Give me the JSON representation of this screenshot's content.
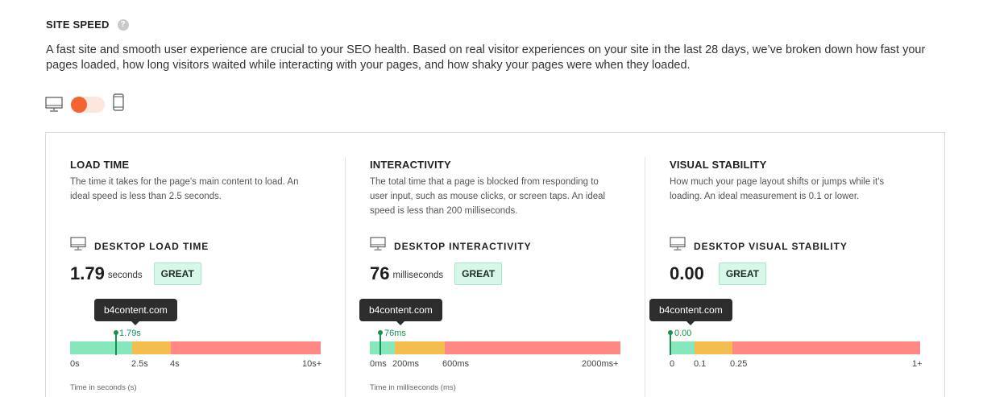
{
  "section": {
    "title": "SITE SPEED",
    "help_icon": "?",
    "description": "A fast site and smooth user experience are crucial to your SEO health. Based on real visitor experiences on your site in the last 28 days, we’ve broken down how fast your pages loaded, how long visitors waited while interacting with your pages, and how shaky your pages were when they loaded."
  },
  "device_toggle": {
    "selected": "desktop",
    "left_icon": "desktop-monitor-icon",
    "right_icon": "mobile-phone-icon",
    "accent_color": "#f26533"
  },
  "colors": {
    "good": "#86e6bc",
    "needs_improvement": "#f3bd4f",
    "poor": "#ff8885",
    "marker": "#16924f",
    "badge_bg": "#d7f7e9"
  },
  "metrics": {
    "load": {
      "title": "LOAD TIME",
      "description": "The time it takes for the page's main content to load. An ideal speed is less than 2.5 seconds.",
      "subtitle": "DESKTOP LOAD TIME",
      "value": "1.79",
      "unit": "seconds",
      "badge": "GREAT",
      "tooltip": "b4content.com",
      "marker_label": "1.79s",
      "ticks": [
        "0s",
        "2.5s",
        "4s",
        "10s+"
      ],
      "axis_note": "Time in seconds (s)"
    },
    "interactivity": {
      "title": "INTERACTIVITY",
      "description": "The total time that a page is blocked from responding to user input, such as mouse clicks, or screen taps. An ideal speed is less than 200 milliseconds.",
      "subtitle": "DESKTOP INTERACTIVITY",
      "value": "76",
      "unit": "milliseconds",
      "badge": "GREAT",
      "tooltip": "b4content.com",
      "marker_label": "76ms",
      "ticks": [
        "0ms",
        "200ms",
        "600ms",
        "2000ms+"
      ],
      "axis_note": "Time in milliseconds (ms)"
    },
    "stability": {
      "title": "VISUAL STABILITY",
      "description": "How much your page layout shifts or jumps while it's loading. An ideal measurement is 0.1 or lower.",
      "subtitle": "DESKTOP VISUAL STABILITY",
      "value": "0.00",
      "unit": "",
      "badge": "GREAT",
      "tooltip": "b4content.com",
      "marker_label": "0.00",
      "ticks": [
        "0",
        "0.1",
        "0.25",
        "1+"
      ]
    }
  }
}
